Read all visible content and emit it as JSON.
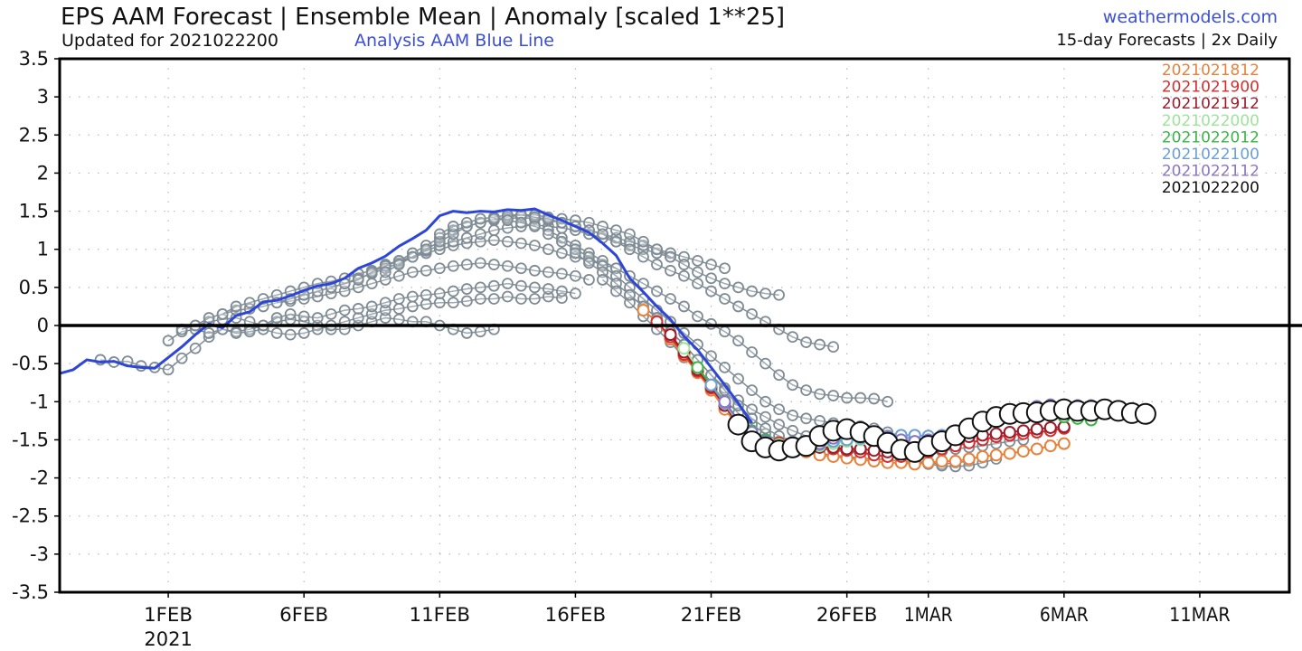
{
  "header": {
    "title": "EPS AAM Forecast | Ensemble Mean | Anomaly [scaled 1**25]",
    "subtitle": "Updated for 2021022200",
    "analysis_label": "Analysis AAM Blue Line",
    "site": "weathermodels.com",
    "frequency": "15-day Forecasts | 2x Daily"
  },
  "chart_data": {
    "type": "line",
    "title": "EPS AAM Forecast | Ensemble Mean | Anomaly [scaled 1**25]",
    "xlabel": "",
    "ylabel": "",
    "ylim": [
      -3.5,
      3.5
    ],
    "yticks": [
      "3.5",
      "3",
      "2.5",
      "2",
      "1.5",
      "1",
      "0.5",
      "0",
      "-0.5",
      "-1",
      "-1.5",
      "-2",
      "-2.5",
      "-3",
      "-3.5"
    ],
    "ytick_values": [
      3.5,
      3,
      2.5,
      2,
      1.5,
      1,
      0.5,
      0,
      -0.5,
      -1,
      -1.5,
      -2,
      -2.5,
      -3,
      -3.5
    ],
    "x_unit": "days since 2021-01-28 00Z",
    "xlim": [
      0,
      45.3
    ],
    "xticks": [
      {
        "day": 4,
        "label": "1FEB",
        "sub": "2021"
      },
      {
        "day": 9,
        "label": "6FEB",
        "sub": ""
      },
      {
        "day": 14,
        "label": "11FEB",
        "sub": ""
      },
      {
        "day": 19,
        "label": "16FEB",
        "sub": ""
      },
      {
        "day": 24,
        "label": "21FEB",
        "sub": ""
      },
      {
        "day": 29,
        "label": "26FEB",
        "sub": ""
      },
      {
        "day": 32,
        "label": "1MAR",
        "sub": ""
      },
      {
        "day": 37,
        "label": "6MAR",
        "sub": ""
      },
      {
        "day": 42,
        "label": "11MAR",
        "sub": ""
      }
    ],
    "grid": true,
    "legend_placement": "top-right",
    "legend": [
      {
        "label": "2021021812",
        "color": "#e8823a"
      },
      {
        "label": "2021021900",
        "color": "#d62d2d"
      },
      {
        "label": "2021021912",
        "color": "#9c1c2a"
      },
      {
        "label": "2021022000",
        "color": "#9de39a"
      },
      {
        "label": "2021022012",
        "color": "#3cb548"
      },
      {
        "label": "2021022100",
        "color": "#6a9fd8"
      },
      {
        "label": "2021022112",
        "color": "#8a76c8"
      },
      {
        "label": "2021022200",
        "color": "#111111"
      }
    ],
    "analysis": {
      "name": "Analysis AAM",
      "color": "#2e46d8",
      "step_days": 0.5,
      "start_day": 0,
      "values": [
        -0.63,
        -0.58,
        -0.45,
        -0.48,
        -0.47,
        -0.53,
        -0.55,
        -0.56,
        -0.42,
        -0.28,
        -0.12,
        0.02,
        -0.03,
        0.13,
        0.18,
        0.31,
        0.33,
        0.39,
        0.46,
        0.52,
        0.55,
        0.62,
        0.75,
        0.82,
        0.91,
        1.04,
        1.14,
        1.25,
        1.44,
        1.5,
        1.48,
        1.5,
        1.49,
        1.52,
        1.51,
        1.53,
        1.45,
        1.38,
        1.3,
        1.22,
        1.08,
        0.92,
        0.62,
        0.44,
        0.25,
        0.08,
        -0.14,
        -0.32,
        -0.55,
        -0.78,
        -1.02,
        -1.28
      ]
    },
    "forecasts": [
      {
        "label": "2021021812",
        "color": "#e8823a",
        "start_day": 21.5,
        "values": [
          0.2,
          0.05,
          -0.18,
          -0.4,
          -0.62,
          -0.85,
          -1.1,
          -1.32,
          -1.45,
          -1.55,
          -1.6,
          -1.63,
          -1.66,
          -1.7,
          -1.72,
          -1.74,
          -1.76,
          -1.78,
          -1.8,
          -1.8,
          -1.82,
          -1.8,
          -1.78,
          -1.78,
          -1.75,
          -1.72,
          -1.7,
          -1.68,
          -1.65,
          -1.62,
          -1.58,
          -1.55
        ]
      },
      {
        "label": "2021021900",
        "color": "#d62d2d",
        "start_day": 22.0,
        "values": [
          0.05,
          -0.15,
          -0.38,
          -0.6,
          -0.82,
          -1.05,
          -1.3,
          -1.42,
          -1.5,
          -1.54,
          -1.56,
          -1.58,
          -1.6,
          -1.62,
          -1.64,
          -1.66,
          -1.7,
          -1.72,
          -1.72,
          -1.7,
          -1.66,
          -1.62,
          -1.58,
          -1.54,
          -1.5,
          -1.46,
          -1.44,
          -1.42,
          -1.4,
          -1.38,
          -1.35
        ]
      },
      {
        "label": "2021021912",
        "color": "#9c1c2a",
        "start_day": 22.5,
        "values": [
          -0.12,
          -0.35,
          -0.58,
          -0.8,
          -1.05,
          -1.3,
          -1.42,
          -1.5,
          -1.56,
          -1.58,
          -1.6,
          -1.6,
          -1.6,
          -1.62,
          -1.62,
          -1.64,
          -1.66,
          -1.66,
          -1.62,
          -1.58,
          -1.54,
          -1.5,
          -1.46,
          -1.44,
          -1.42,
          -1.4,
          -1.38,
          -1.36,
          -1.34,
          -1.33
        ]
      },
      {
        "label": "2021022000",
        "color": "#9de39a",
        "start_day": 23.0,
        "values": [
          -0.3,
          -0.55,
          -0.78,
          -1.02,
          -1.28,
          -1.4,
          -1.5,
          -1.56,
          -1.6,
          -1.6,
          -1.58,
          -1.55,
          -1.52,
          -1.5,
          -1.48,
          -1.5,
          -1.52,
          -1.52,
          -1.5,
          -1.45,
          -1.38,
          -1.3,
          -1.24,
          -1.2,
          -1.18,
          -1.16,
          -1.16,
          -1.18,
          -1.2,
          -1.22
        ]
      },
      {
        "label": "2021022012",
        "color": "#3cb548",
        "start_day": 23.5,
        "values": [
          -0.55,
          -0.78,
          -1.0,
          -1.25,
          -1.38,
          -1.5,
          -1.58,
          -1.62,
          -1.6,
          -1.56,
          -1.52,
          -1.48,
          -1.46,
          -1.44,
          -1.46,
          -1.5,
          -1.52,
          -1.5,
          -1.46,
          -1.38,
          -1.3,
          -1.24,
          -1.2,
          -1.18,
          -1.16,
          -1.16,
          -1.18,
          -1.2,
          -1.22,
          -1.24
        ]
      },
      {
        "label": "2021022100",
        "color": "#6a9fd8",
        "start_day": 24.0,
        "values": [
          -0.78,
          -1.02,
          -1.25,
          -1.4,
          -1.52,
          -1.6,
          -1.62,
          -1.6,
          -1.56,
          -1.52,
          -1.5,
          -1.48,
          -1.46,
          -1.45,
          -1.44,
          -1.44,
          -1.45,
          -1.44,
          -1.4,
          -1.34,
          -1.26,
          -1.2,
          -1.16,
          -1.12,
          -1.1,
          -1.08,
          -1.08,
          -1.08,
          -1.1,
          -1.12
        ]
      },
      {
        "label": "2021022112",
        "color": "#8a76c8",
        "start_day": 24.5,
        "values": [
          -1.0,
          -1.25,
          -1.4,
          -1.52,
          -1.6,
          -1.62,
          -1.6,
          -1.55,
          -1.48,
          -1.42,
          -1.4,
          -1.42,
          -1.46,
          -1.5,
          -1.52,
          -1.5,
          -1.46,
          -1.42,
          -1.36,
          -1.28,
          -1.2,
          -1.14,
          -1.1,
          -1.06,
          -1.04,
          -1.04,
          -1.05,
          -1.05,
          -1.06,
          -1.08
        ]
      },
      {
        "label": "2021022200",
        "color": "#111111",
        "start_day": 25.0,
        "values": [
          -1.3,
          -1.52,
          -1.6,
          -1.64,
          -1.6,
          -1.58,
          -1.45,
          -1.38,
          -1.36,
          -1.4,
          -1.45,
          -1.54,
          -1.63,
          -1.66,
          -1.58,
          -1.52,
          -1.44,
          -1.35,
          -1.26,
          -1.2,
          -1.16,
          -1.15,
          -1.14,
          -1.12,
          -1.1,
          -1.12,
          -1.12,
          -1.1,
          -1.12,
          -1.15,
          -1.16
        ]
      }
    ],
    "older_members_color": "#7f8c95",
    "older_members": [
      {
        "start_day": 1.5,
        "values": [
          -0.45,
          -0.48,
          -0.47,
          -0.53,
          -0.55,
          -0.58,
          -0.43,
          -0.3,
          -0.15,
          -0.05,
          -0.08,
          -0.05,
          0.0,
          0.05,
          0.08,
          0.05,
          0.0,
          -0.05,
          -0.05,
          0.0,
          0.05,
          0.1,
          0.08,
          0.05,
          0.05,
          0.0,
          -0.05,
          -0.1,
          -0.08,
          -0.05
        ]
      },
      {
        "start_day": 4.0,
        "values": [
          -0.2,
          -0.08,
          -0.05,
          -0.1,
          -0.05,
          -0.1,
          -0.08,
          -0.05,
          -0.1,
          -0.12,
          -0.1,
          -0.05,
          0.0,
          0.05,
          0.1,
          0.15,
          0.2,
          0.22,
          0.25,
          0.28,
          0.3,
          0.3,
          0.32,
          0.35,
          0.35,
          0.38,
          0.35,
          0.35,
          0.38,
          0.36
        ]
      },
      {
        "start_day": 4.5,
        "values": [
          -0.05,
          0.0,
          0.05,
          0.08,
          0.1,
          0.05,
          0.0,
          0.1,
          0.15,
          0.12,
          0.1,
          0.15,
          0.2,
          0.22,
          0.25,
          0.3,
          0.35,
          0.38,
          0.4,
          0.42,
          0.45,
          0.48,
          0.5,
          0.52,
          0.55,
          0.52,
          0.5,
          0.48,
          0.45,
          0.42
        ]
      },
      {
        "start_day": 5.0,
        "values": [
          0.0,
          0.1,
          0.15,
          0.2,
          0.22,
          0.25,
          0.3,
          0.32,
          0.35,
          0.38,
          0.42,
          0.45,
          0.5,
          0.55,
          0.6,
          0.65,
          0.7,
          0.72,
          0.75,
          0.78,
          0.8,
          0.82,
          0.8,
          0.78,
          0.75,
          0.72,
          0.7,
          0.68,
          0.65,
          0.6
        ]
      },
      {
        "start_day": 6.0,
        "values": [
          0.15,
          0.25,
          0.3,
          0.35,
          0.4,
          0.45,
          0.5,
          0.55,
          0.58,
          0.62,
          0.68,
          0.72,
          0.8,
          0.85,
          0.9,
          0.95,
          1.0,
          1.05,
          1.08,
          1.1,
          1.12,
          1.1,
          1.08,
          1.05,
          1.0,
          0.95,
          0.9,
          0.85,
          0.8,
          0.75
        ]
      },
      {
        "start_day": 8.0,
        "values": [
          0.3,
          0.35,
          0.4,
          0.45,
          0.5,
          0.55,
          0.62,
          0.68,
          0.75,
          0.82,
          0.9,
          0.98,
          1.05,
          1.1,
          1.15,
          1.2,
          1.25,
          1.28,
          1.3,
          1.32,
          1.3,
          1.28,
          1.25,
          1.2,
          1.15,
          1.1,
          1.05,
          1.0,
          0.95,
          0.9
        ]
      },
      {
        "start_day": 10.0,
        "values": [
          0.5,
          0.55,
          0.6,
          0.7,
          0.78,
          0.85,
          0.95,
          1.05,
          1.15,
          1.25,
          1.3,
          1.35,
          1.38,
          1.4,
          1.42,
          1.4,
          1.38,
          1.35,
          1.3,
          1.25,
          1.2,
          1.15,
          1.1,
          1.05,
          1.0,
          0.95,
          0.9,
          0.85,
          0.8,
          0.75
        ]
      },
      {
        "start_day": 12.0,
        "values": [
          0.7,
          0.8,
          0.9,
          1.0,
          1.1,
          1.2,
          1.3,
          1.35,
          1.4,
          1.42,
          1.45,
          1.45,
          1.42,
          1.4,
          1.38,
          1.35,
          1.3,
          1.25,
          1.2,
          1.1,
          1.0,
          0.9,
          0.8,
          0.7,
          0.62,
          0.55,
          0.5,
          0.45,
          0.42,
          0.4
        ]
      },
      {
        "start_day": 14.0,
        "values": [
          1.2,
          1.3,
          1.35,
          1.4,
          1.42,
          1.45,
          1.45,
          1.42,
          1.4,
          1.35,
          1.3,
          1.25,
          1.2,
          1.1,
          1.0,
          0.9,
          0.8,
          0.72,
          0.65,
          0.55,
          0.45,
          0.35,
          0.25,
          0.15,
          0.05,
          -0.05,
          -0.15,
          -0.22,
          -0.25,
          -0.28
        ]
      },
      {
        "start_day": 16.0,
        "values": [
          1.4,
          1.38,
          1.35,
          1.3,
          1.25,
          1.15,
          1.05,
          0.95,
          0.85,
          0.75,
          0.65,
          0.55,
          0.45,
          0.35,
          0.25,
          0.12,
          0.02,
          -0.08,
          -0.2,
          -0.35,
          -0.5,
          -0.65,
          -0.78,
          -0.85,
          -0.9,
          -0.92,
          -0.95,
          -0.95,
          -0.96,
          -1.0
        ]
      },
      {
        "start_day": 18.0,
        "values": [
          1.2,
          1.1,
          1.0,
          0.9,
          0.78,
          0.65,
          0.5,
          0.35,
          0.2,
          0.05,
          -0.1,
          -0.25,
          -0.4,
          -0.55,
          -0.7,
          -0.85,
          -1.0,
          -1.1,
          -1.18,
          -1.22,
          -1.25,
          -1.28,
          -1.3,
          -1.32,
          -1.35,
          -1.4,
          -1.45,
          -1.5,
          -1.55,
          -1.58
        ]
      },
      {
        "start_day": 19.0,
        "values": [
          0.95,
          0.82,
          0.7,
          0.55,
          0.4,
          0.25,
          0.1,
          -0.08,
          -0.25,
          -0.45,
          -0.65,
          -0.82,
          -0.98,
          -1.1,
          -1.2,
          -1.3,
          -1.38,
          -1.45,
          -1.5,
          -1.55,
          -1.6,
          -1.65,
          -1.7,
          -1.72,
          -1.75,
          -1.78,
          -1.8,
          -1.82,
          -1.8,
          -1.78
        ]
      },
      {
        "start_day": 20.0,
        "values": [
          0.6,
          0.45,
          0.3,
          0.12,
          -0.05,
          -0.22,
          -0.42,
          -0.6,
          -0.8,
          -0.98,
          -1.15,
          -1.3,
          -1.42,
          -1.52,
          -1.6,
          -1.65,
          -1.68,
          -1.7,
          -1.72,
          -1.74,
          -1.75,
          -1.76,
          -1.78,
          -1.8,
          -1.82,
          -1.84,
          -1.85,
          -1.84,
          -1.8,
          -1.75
        ]
      },
      {
        "start_day": 21.0,
        "values": [
          0.4,
          0.25,
          0.1,
          -0.08,
          -0.25,
          -0.45,
          -0.65,
          -0.85,
          -1.05,
          -1.22,
          -1.35,
          -1.45,
          -1.52,
          -1.58,
          -1.62,
          -1.64,
          -1.66,
          -1.68,
          -1.7,
          -1.72,
          -1.72,
          -1.7,
          -1.68,
          -1.65,
          -1.62,
          -1.6,
          -1.58,
          -1.55,
          -1.52,
          -1.5
        ]
      }
    ]
  }
}
